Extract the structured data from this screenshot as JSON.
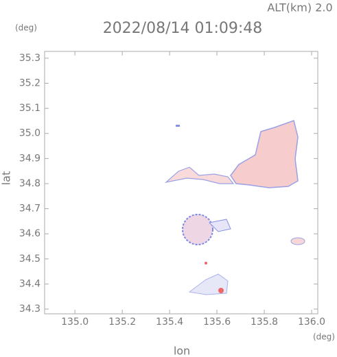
{
  "chart_data": {
    "type": "map",
    "title": "2022/08/14 01:09:48",
    "subtitle": "ALT(km) 2.0",
    "x_label": "lon",
    "y_label": "lat",
    "x_unit": "(deg)",
    "y_unit": "(deg)",
    "xlim": [
      134.872,
      136.026
    ],
    "ylim": [
      34.281,
      35.327
    ],
    "xticks": [
      {
        "value": 135.0,
        "label": "135.0"
      },
      135.2,
      135.4,
      135.6,
      135.8,
      {
        "value": 136.0,
        "label": "136.0"
      }
    ],
    "yticks": [
      34.3,
      34.4,
      34.5,
      34.6,
      34.7,
      34.8,
      34.9,
      {
        "value": 35.0,
        "label": "35.0"
      },
      35.1,
      35.2,
      35.3
    ]
  }
}
